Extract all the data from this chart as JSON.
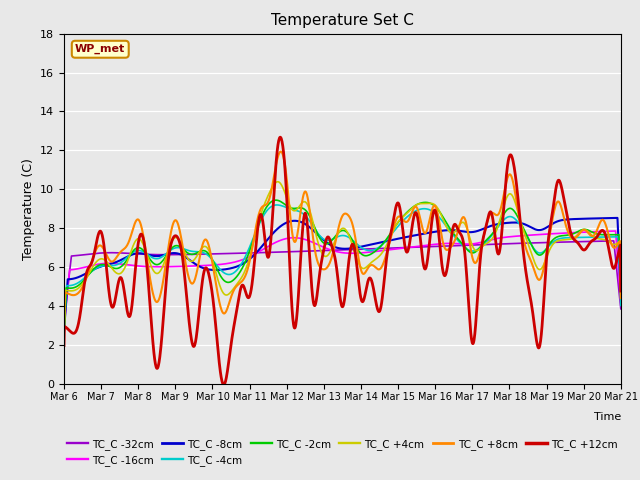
{
  "title": "Temperature Set C",
  "xlabel": "Time",
  "ylabel": "Temperature (C)",
  "ylim": [
    0,
    18
  ],
  "plot_bg_color": "#e8e8e8",
  "fig_bg_color": "#e8e8e8",
  "wp_met_label": "WP_met",
  "series": {
    "TC_C -32cm": {
      "color": "#9900cc",
      "linewidth": 1.2
    },
    "TC_C -16cm": {
      "color": "#ff00ff",
      "linewidth": 1.2
    },
    "TC_C -8cm": {
      "color": "#0000cc",
      "linewidth": 1.5
    },
    "TC_C -4cm": {
      "color": "#00cccc",
      "linewidth": 1.2
    },
    "TC_C -2cm": {
      "color": "#00cc00",
      "linewidth": 1.2
    },
    "TC_C +4cm": {
      "color": "#cccc00",
      "linewidth": 1.2
    },
    "TC_C +8cm": {
      "color": "#ff8800",
      "linewidth": 1.5
    },
    "TC_C +12cm": {
      "color": "#cc0000",
      "linewidth": 2.0
    }
  },
  "tick_labels": [
    "Mar 6",
    "Mar 7",
    "Mar 8",
    "Mar 9",
    "Mar 10",
    "Mar 11",
    "Mar 12",
    "Mar 13",
    "Mar 14",
    "Mar 15",
    "Mar 16",
    "Mar 17",
    "Mar 18",
    "Mar 19",
    "Mar 20",
    "Mar 21"
  ],
  "tick_positions": [
    0,
    1,
    2,
    3,
    4,
    5,
    6,
    7,
    8,
    9,
    10,
    11,
    12,
    13,
    14,
    15
  ]
}
